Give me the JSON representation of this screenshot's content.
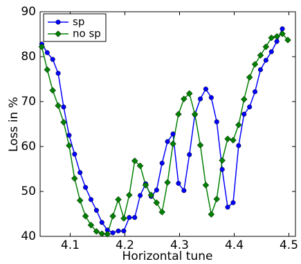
{
  "chart_data": {
    "type": "line",
    "x_label": "Horizontal tune",
    "y_label": "Loss in %",
    "x": [
      4.048,
      4.058,
      4.068,
      4.078,
      4.088,
      4.098,
      4.108,
      4.118,
      4.128,
      4.138,
      4.148,
      4.158,
      4.168,
      4.178,
      4.188,
      4.198,
      4.208,
      4.218,
      4.228,
      4.238,
      4.248,
      4.258,
      4.268,
      4.278,
      4.288,
      4.298,
      4.308,
      4.318,
      4.328,
      4.338,
      4.348,
      4.358,
      4.368,
      4.378,
      4.388,
      4.398,
      4.408,
      4.418,
      4.428,
      4.438,
      4.448,
      4.458,
      4.468,
      4.478,
      4.488,
      4.498
    ],
    "series": [
      {
        "name": "sp",
        "color": "#0000ff",
        "marker": "circle",
        "values": [
          82.8,
          80.9,
          79.4,
          76.3,
          68.8,
          62.5,
          58.3,
          54.2,
          50.9,
          48.2,
          45.8,
          43.1,
          41.4,
          40.8,
          41.2,
          41.2,
          44.2,
          44.2,
          49.1,
          51.7,
          48.9,
          50.3,
          56.3,
          61.1,
          62.8,
          51.8,
          50.2,
          58.2,
          67.1,
          70.6,
          72.8,
          70.9,
          65.5,
          54.9,
          46.5,
          47.5,
          60.2,
          67.2,
          68.8,
          72.2,
          77.1,
          79.2,
          81.1,
          83.4,
          86.2,
          null
        ]
      },
      {
        "name": "no sp",
        "color": "#008000",
        "marker": "diamond",
        "values": [
          82.2,
          77.1,
          72.5,
          69.1,
          65.4,
          60.2,
          52.9,
          48.0,
          44.5,
          42.5,
          41.1,
          40.6,
          40.5,
          44.5,
          48.2,
          44.0,
          49.2,
          56.8,
          55.7,
          51.4,
          49.2,
          47.5,
          45.4,
          52.0,
          60.6,
          67.2,
          70.6,
          71.8,
          67.2,
          60.3,
          51.4,
          44.9,
          48.3,
          56.9,
          61.7,
          61.4,
          64.8,
          70.5,
          75.4,
          78.3,
          80.3,
          82.2,
          84.2,
          84.5,
          85.1,
          83.7
        ]
      }
    ],
    "xlim": [
      4.045,
      4.512
    ],
    "xticks": [
      4.1,
      4.2,
      4.3,
      4.4,
      4.5
    ],
    "ylim": [
      40,
      90
    ],
    "yticks": [
      40,
      50,
      60,
      70,
      80,
      90
    ],
    "legend": "upper left"
  }
}
